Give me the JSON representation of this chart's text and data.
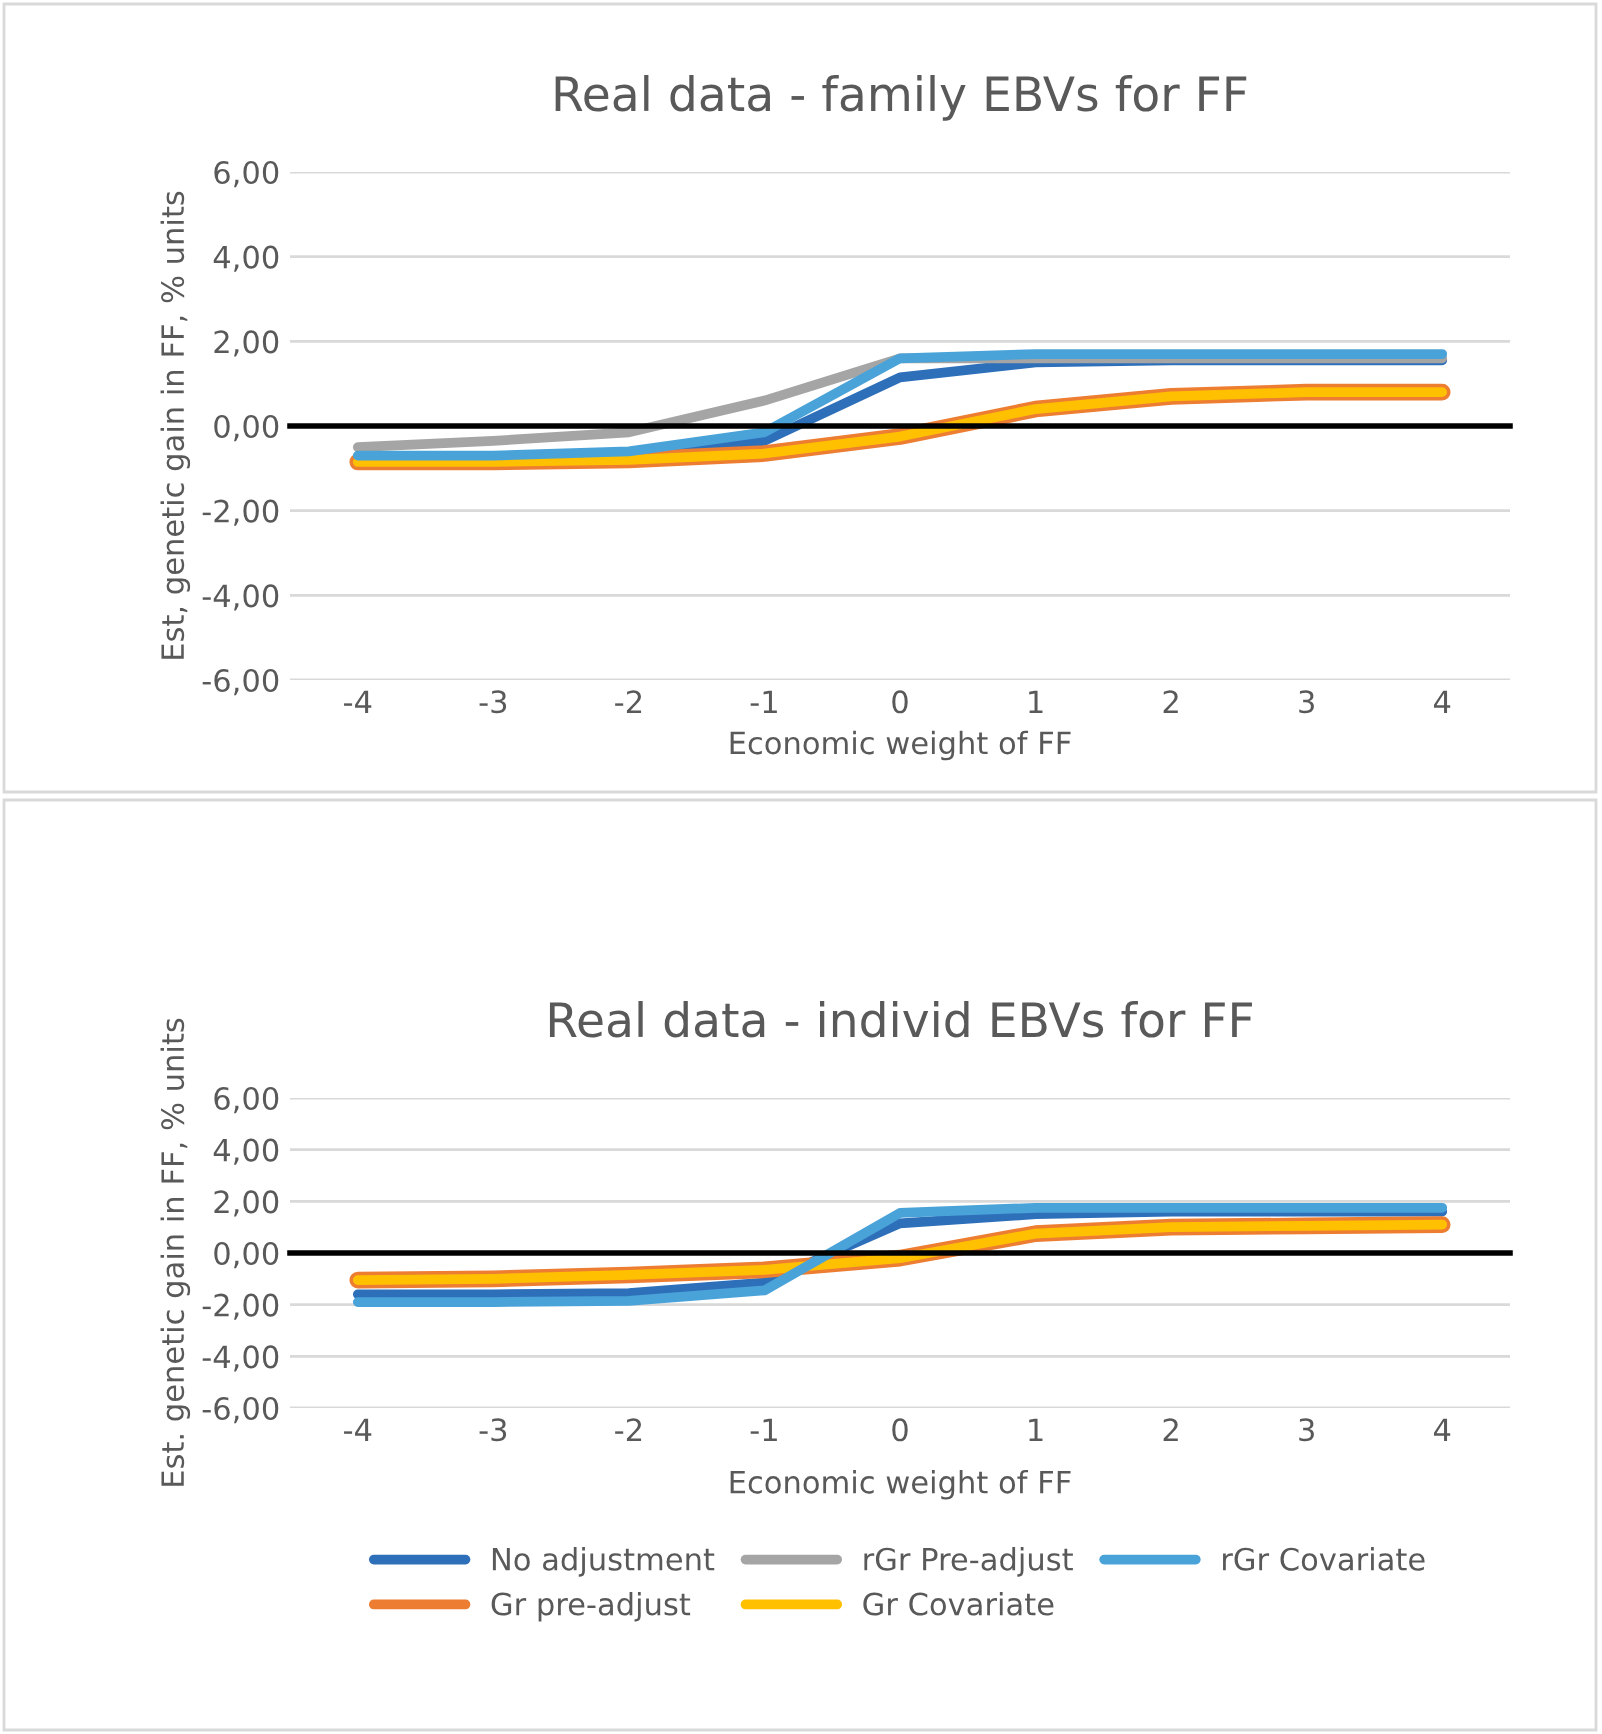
{
  "chart_data": [
    {
      "type": "line",
      "title": "Real data - family EBVs for FF",
      "xlabel": "Economic weight of FF",
      "ylabel": "Est, genetic gain in FF, % units",
      "categories": [
        "-4",
        "-3",
        "-2",
        "-1",
        "0",
        "1",
        "2",
        "3",
        "4"
      ],
      "ylim": [
        -6,
        6
      ],
      "yticks": [
        {
          "value": -6,
          "label": "-6,00"
        },
        {
          "value": -4,
          "label": "-4,00"
        },
        {
          "value": -2,
          "label": "-2,00"
        },
        {
          "value": 0,
          "label": "0,00"
        },
        {
          "value": 2,
          "label": "2,00"
        },
        {
          "value": 4,
          "label": "4,00"
        },
        {
          "value": 6,
          "label": "6,00"
        }
      ],
      "grid": "y",
      "marker": "none",
      "line_style": "solid",
      "series": [
        {
          "color": "#2e6fba",
          "values": [
            -0.75,
            -0.75,
            -0.7,
            -0.35,
            1.15,
            1.5,
            1.55,
            1.55,
            1.55
          ]
        },
        {
          "color": "#ed7d31",
          "values": [
            -0.85,
            -0.85,
            -0.8,
            -0.65,
            -0.25,
            0.4,
            0.7,
            0.8,
            0.8
          ]
        },
        {
          "color": "#a5a5a5",
          "values": [
            -0.5,
            -0.35,
            -0.15,
            0.6,
            1.6,
            1.6,
            1.6,
            1.6,
            1.6
          ]
        },
        {
          "color": "#ffc000",
          "values": [
            -0.85,
            -0.85,
            -0.8,
            -0.65,
            -0.25,
            0.4,
            0.7,
            0.8,
            0.8
          ]
        },
        {
          "color": "#4aa3d8",
          "values": [
            -0.7,
            -0.7,
            -0.6,
            -0.15,
            1.6,
            1.7,
            1.7,
            1.7,
            1.7
          ]
        }
      ]
    },
    {
      "type": "line",
      "title": "Real data - individ EBVs for FF",
      "xlabel": "Economic weight of FF",
      "ylabel": "Est. genetic gain in FF, % units",
      "categories": [
        "-4",
        "-3",
        "-2",
        "-1",
        "0",
        "1",
        "2",
        "3",
        "4"
      ],
      "ylim": [
        -6,
        6
      ],
      "yticks": [
        {
          "value": -6,
          "label": "-6,00"
        },
        {
          "value": -4,
          "label": "-4,00"
        },
        {
          "value": -2,
          "label": "-2,00"
        },
        {
          "value": 0,
          "label": "0,00"
        },
        {
          "value": 2,
          "label": "2,00"
        },
        {
          "value": 4,
          "label": "4,00"
        },
        {
          "value": 6,
          "label": "6,00"
        }
      ],
      "grid": "y",
      "legend": "bottom",
      "marker": "none",
      "line_style": "solid",
      "series": [
        {
          "name": "No adjustment",
          "color": "#2e6fba",
          "values": [
            -1.6,
            -1.6,
            -1.55,
            -1.15,
            1.15,
            1.5,
            1.6,
            1.6,
            1.6
          ]
        },
        {
          "name": "Gr pre-adjust",
          "color": "#ed7d31",
          "values": [
            -1.05,
            -1.0,
            -0.85,
            -0.65,
            -0.2,
            0.75,
            1.0,
            1.05,
            1.1
          ]
        },
        {
          "name": "rGr Pre-adjust",
          "color": "#a5a5a5",
          "values": [
            null,
            null,
            null,
            null,
            null,
            null,
            null,
            null,
            null
          ]
        },
        {
          "name": "Gr Covariate",
          "color": "#ffc000",
          "values": [
            -1.05,
            -1.0,
            -0.85,
            -0.65,
            -0.2,
            0.75,
            1.0,
            1.05,
            1.1
          ]
        },
        {
          "name": "rGr Covariate",
          "color": "#4aa3d8",
          "values": [
            -1.9,
            -1.9,
            -1.85,
            -1.45,
            1.55,
            1.75,
            1.75,
            1.75,
            1.75
          ]
        }
      ]
    }
  ]
}
